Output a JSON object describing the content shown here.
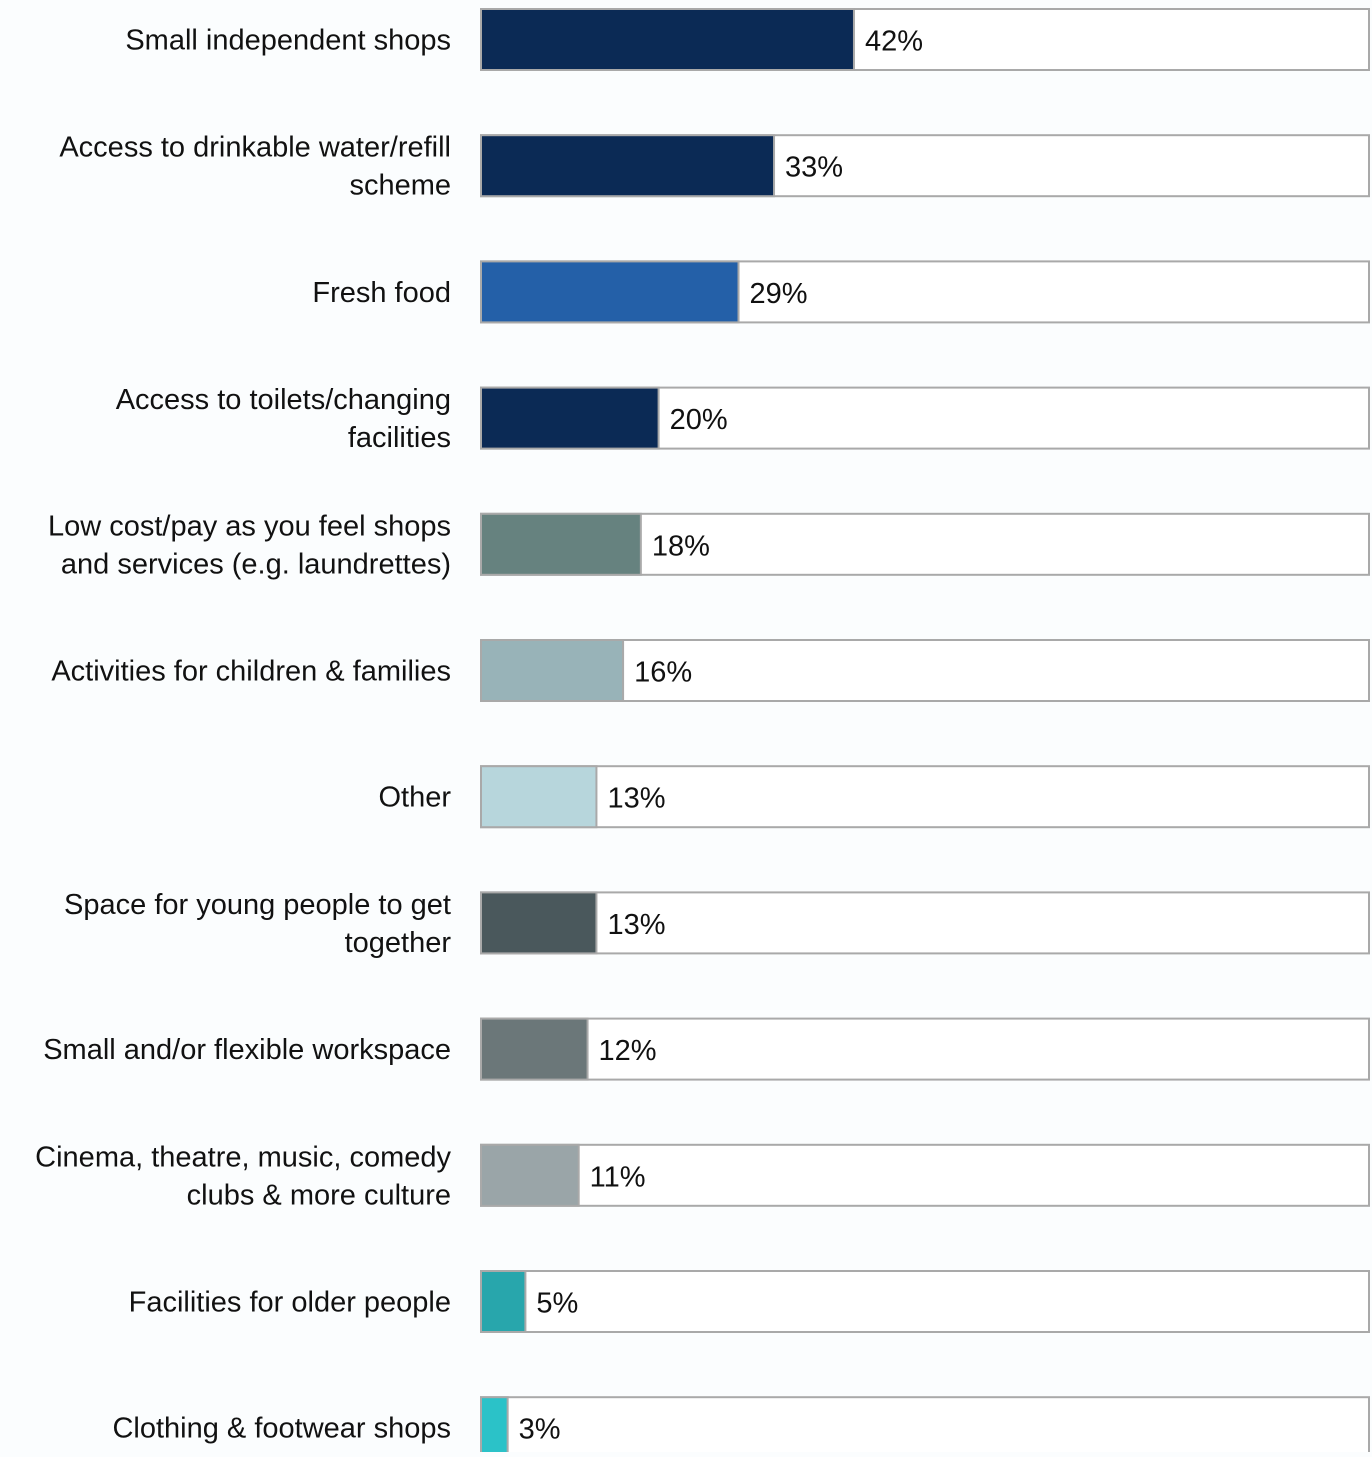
{
  "chart_data": {
    "type": "bar",
    "orientation": "horizontal",
    "xlim": [
      0,
      100
    ],
    "grid": false,
    "legend": "none",
    "categories": [
      [
        "Small independent shops"
      ],
      [
        "Access to drinkable water/refill",
        "scheme"
      ],
      [
        "Fresh food"
      ],
      [
        "Access to toilets/changing",
        "facilities"
      ],
      [
        "Low cost/pay as you feel shops",
        "and services (e.g. laundrettes)"
      ],
      [
        "Activities for children & families"
      ],
      [
        "Other"
      ],
      [
        "Space for young people to get",
        "together"
      ],
      [
        "Small and/or flexible workspace"
      ],
      [
        "Cinema, theatre, music, comedy",
        "clubs & more culture"
      ],
      [
        "Facilities for older people"
      ],
      [
        "Clothing & footwear shops"
      ]
    ],
    "values": [
      42,
      33,
      29,
      20,
      18,
      16,
      13,
      13,
      12,
      11,
      5,
      3
    ],
    "value_labels": [
      "42%",
      "33%",
      "29%",
      "20%",
      "18%",
      "16%",
      "13%",
      "13%",
      "12%",
      "11%",
      "5%",
      "3%"
    ],
    "colors": [
      "#0b2a55",
      "#0b2a55",
      "#2460a8",
      "#0b2a55",
      "#66827f",
      "#98b3b8",
      "#b7d6dc",
      "#4a585c",
      "#6b7779",
      "#9aa5a8",
      "#28a6ac",
      "#2bc2c8"
    ],
    "track_color": "#ffffff",
    "track_border": "#a9a9a9"
  }
}
